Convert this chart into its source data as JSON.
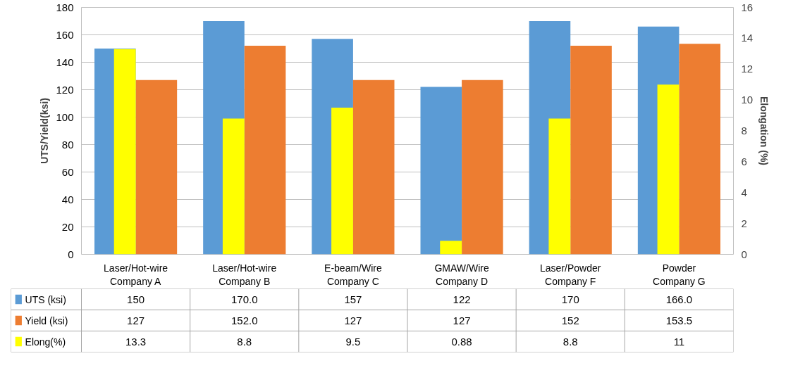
{
  "chart_data": {
    "type": "bar",
    "ylabel": "UTS/Yield(ksi)",
    "y2label": "Elongation (%)",
    "categories": [
      "Laser/Hot-wire\nCompany A",
      "Laser/Hot-wire\nCompany B",
      "E-beam/Wire\nCompany C",
      "GMAW/Wire\nCompany D",
      "Laser/Powder\nCompany F",
      "Powder\nCompany G"
    ],
    "series": [
      {
        "name": "UTS (ksi)",
        "color": "#5b9bd5",
        "values": [
          150,
          170.0,
          157,
          122,
          170,
          166.0
        ],
        "value_labels": [
          "150",
          "170.0",
          "157",
          "122",
          "170",
          "166.0"
        ]
      },
      {
        "name": "Yield (ksi)",
        "color": "#ed7d31",
        "values": [
          127,
          152.0,
          127,
          127,
          152,
          153.5
        ],
        "value_labels": [
          "127",
          "152.0",
          "127",
          "127",
          "152",
          "153.5"
        ]
      },
      {
        "name": "Elong(%)",
        "color": "#ffff00",
        "axis": "y2",
        "values": [
          13.3,
          8.8,
          9.5,
          0.88,
          8.8,
          11
        ],
        "value_labels": [
          "13.3",
          "8.8",
          "9.5",
          "0.88",
          "8.8",
          "11"
        ]
      }
    ],
    "ylim": [
      0,
      180
    ],
    "yticks": [
      0,
      20,
      40,
      60,
      80,
      100,
      120,
      140,
      160,
      180
    ],
    "y2lim": [
      0,
      16
    ],
    "y2ticks": [
      0,
      2,
      4,
      6,
      8,
      10,
      12,
      14,
      16
    ],
    "grid": "y",
    "legend": "bottom",
    "data_labels": true
  }
}
